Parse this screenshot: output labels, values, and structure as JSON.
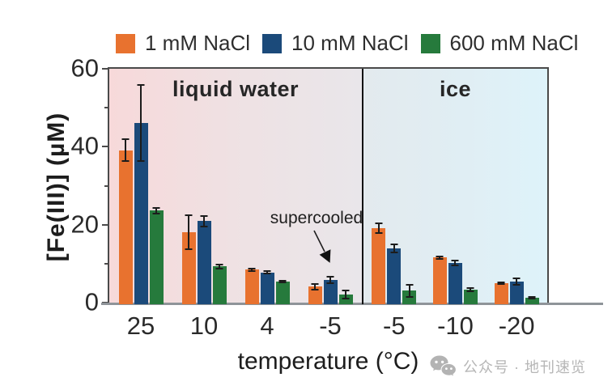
{
  "legend": {
    "items": [
      {
        "label": "1 mM NaCl",
        "color": "#e8722f"
      },
      {
        "label": "10 mM NaCl",
        "color": "#1b4a7a"
      },
      {
        "label": "600 mM NaCl",
        "color": "#267a3c"
      }
    ]
  },
  "chart_data": {
    "type": "bar",
    "title": "",
    "xlabel": "temperature (°C)",
    "ylabel": "[Fe(III)] (µM)",
    "ylim": [
      0,
      60
    ],
    "yticks_major": [
      0,
      20,
      40,
      60
    ],
    "yticks_minor": [
      10,
      30,
      50
    ],
    "grid": false,
    "legend_position": "top",
    "series": [
      "1 mM NaCl",
      "10 mM NaCl",
      "600 mM NaCl"
    ],
    "series_colors": [
      "#e8722f",
      "#1b4a7a",
      "#267a3c"
    ],
    "regions": [
      {
        "label": "liquid water",
        "bg_from": "#f7d9da",
        "bg_to": "#e9e6ea"
      },
      {
        "label": "ice",
        "bg_from": "#e3eaee",
        "bg_to": "#def3fa"
      }
    ],
    "groups": [
      {
        "region": "liquid water",
        "label": "25",
        "values": [
          39.5,
          46.5,
          24.0
        ],
        "errors": [
          3.0,
          10.0,
          1.0
        ]
      },
      {
        "region": "liquid water",
        "label": "10",
        "values": [
          18.5,
          21.3,
          9.7
        ],
        "errors": [
          4.5,
          1.5,
          0.7
        ]
      },
      {
        "region": "liquid water",
        "label": "4",
        "values": [
          8.9,
          8.2,
          5.8
        ],
        "errors": [
          0.5,
          0.6,
          0.4
        ]
      },
      {
        "region": "liquid water",
        "label": "-5",
        "values": [
          4.5,
          6.2,
          2.5
        ],
        "errors": [
          1.0,
          1.0,
          1.2
        ]
      },
      {
        "region": "ice",
        "label": "-5",
        "values": [
          19.5,
          14.3,
          3.5
        ],
        "errors": [
          1.5,
          1.3,
          1.8
        ]
      },
      {
        "region": "ice",
        "label": "-10",
        "values": [
          12.0,
          10.6,
          3.8
        ],
        "errors": [
          0.5,
          0.8,
          0.6
        ]
      },
      {
        "region": "ice",
        "label": "-20",
        "values": [
          5.4,
          5.8,
          1.7
        ],
        "errors": [
          0.5,
          1.0,
          0.4
        ]
      }
    ],
    "annotation": {
      "text": "supercooled",
      "target_group": "-5 (liquid water)"
    }
  },
  "watermark": {
    "text": "公众号 · 地刊速览",
    "icon": "wechat-icon"
  }
}
